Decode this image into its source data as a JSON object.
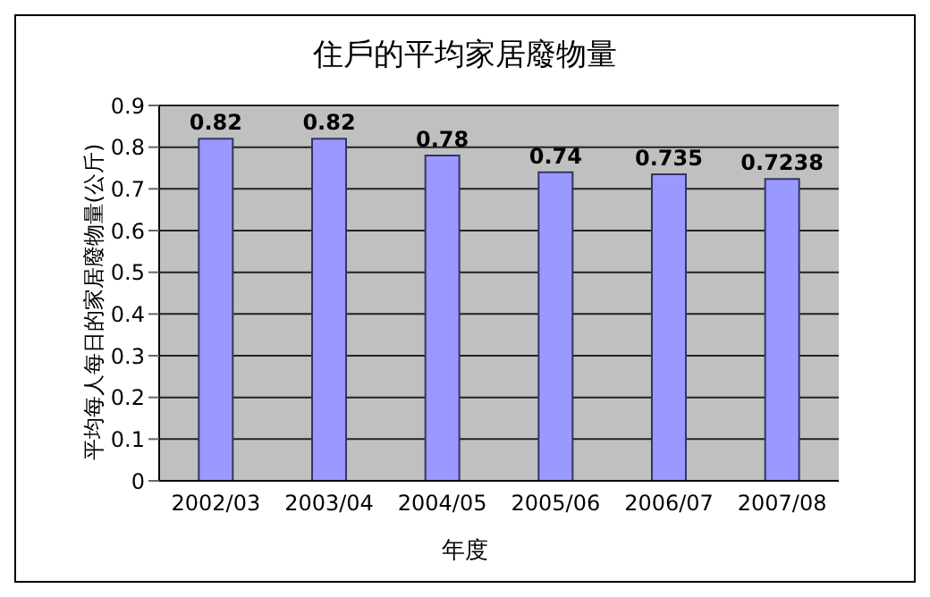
{
  "chart_data": {
    "type": "bar",
    "title": "住戶的平均家居廢物量",
    "xlabel": "年度",
    "ylabel": "平均每人每日的家居廢物量(公斤)",
    "categories": [
      "2002/03",
      "2003/04",
      "2004/05",
      "2005/06",
      "2006/07",
      "2007/08"
    ],
    "values": [
      0.82,
      0.82,
      0.78,
      0.74,
      0.735,
      0.7238
    ],
    "color": "#9999ff",
    "ylim": [
      0,
      0.9
    ],
    "yticks": [
      0,
      0.1,
      0.2,
      0.3,
      0.4,
      0.5,
      0.6,
      0.7,
      0.8,
      0.9
    ],
    "grid": "y",
    "data_labels": true,
    "legend": false
  }
}
